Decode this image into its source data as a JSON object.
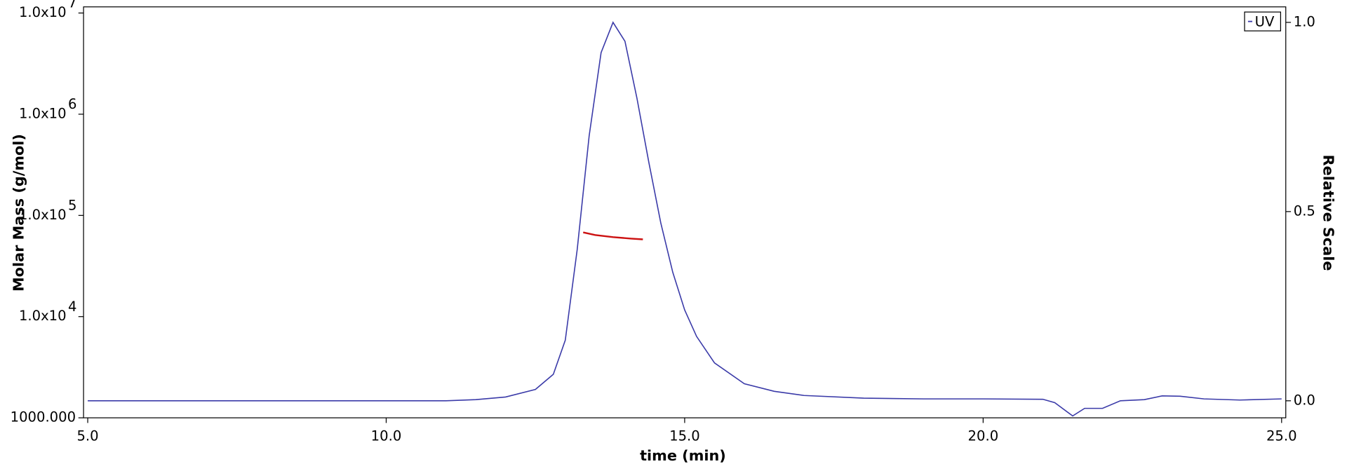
{
  "chart_data": {
    "type": "line",
    "xlabel": "time (min)",
    "ylabel": "Molar Mass (g/mol)",
    "y2label": "Relative Scale",
    "xlim": [
      4.93,
      25.07
    ],
    "ylim": [
      1000,
      11500000
    ],
    "y2lim": [
      -0.045,
      1.041
    ],
    "ylog": true,
    "xticks": [
      {
        "value": 5,
        "label": "5.0"
      },
      {
        "value": 10,
        "label": "10.0"
      },
      {
        "value": 15,
        "label": "15.0"
      },
      {
        "value": 20,
        "label": "20.0"
      },
      {
        "value": 25,
        "label": "25.0"
      }
    ],
    "yticks": [
      {
        "value": 1000,
        "label": "1000.000"
      },
      {
        "value": 10000,
        "label": "1.0x10",
        "exponent": "4"
      },
      {
        "value": 100000,
        "label": "1.0x10",
        "exponent": "5"
      },
      {
        "value": 1000000,
        "label": "1.0x10",
        "exponent": "6"
      },
      {
        "value": 10000000,
        "label": "1.0x10",
        "exponent": "7"
      }
    ],
    "y2ticks": [
      {
        "value": 0,
        "label": "0.0"
      },
      {
        "value": 0.5,
        "label": "0.5"
      },
      {
        "value": 1,
        "label": "1.0"
      }
    ],
    "legend": "top-right",
    "series": [
      {
        "name": "UV",
        "color": "#3a3aa8",
        "axis": "y2",
        "x": [
          5,
          11,
          11.5,
          12,
          12.5,
          12.8,
          13,
          13.2,
          13.4,
          13.6,
          13.8,
          14,
          14.2,
          14.4,
          14.6,
          14.8,
          15,
          15.2,
          15.5,
          16,
          16.5,
          17,
          18,
          19,
          20,
          21,
          21.2,
          21.5,
          21.7,
          22,
          22.3,
          22.7,
          23,
          23.3,
          23.7,
          24.3,
          25
        ],
        "values": [
          0,
          0,
          0.003,
          0.01,
          0.03,
          0.07,
          0.16,
          0.4,
          0.7,
          0.92,
          1.0,
          0.95,
          0.8,
          0.63,
          0.47,
          0.34,
          0.24,
          0.17,
          0.1,
          0.045,
          0.025,
          0.014,
          0.007,
          0.005,
          0.005,
          0.004,
          -0.005,
          -0.04,
          -0.02,
          -0.02,
          0,
          0.003,
          0.013,
          0.012,
          0.005,
          0.002,
          0.005
        ]
      },
      {
        "color": "#cc1111",
        "x": [
          13.3,
          13.5,
          13.8,
          14.1,
          14.3
        ],
        "values": [
          68000,
          64000,
          61000,
          59000,
          58000
        ]
      }
    ]
  }
}
